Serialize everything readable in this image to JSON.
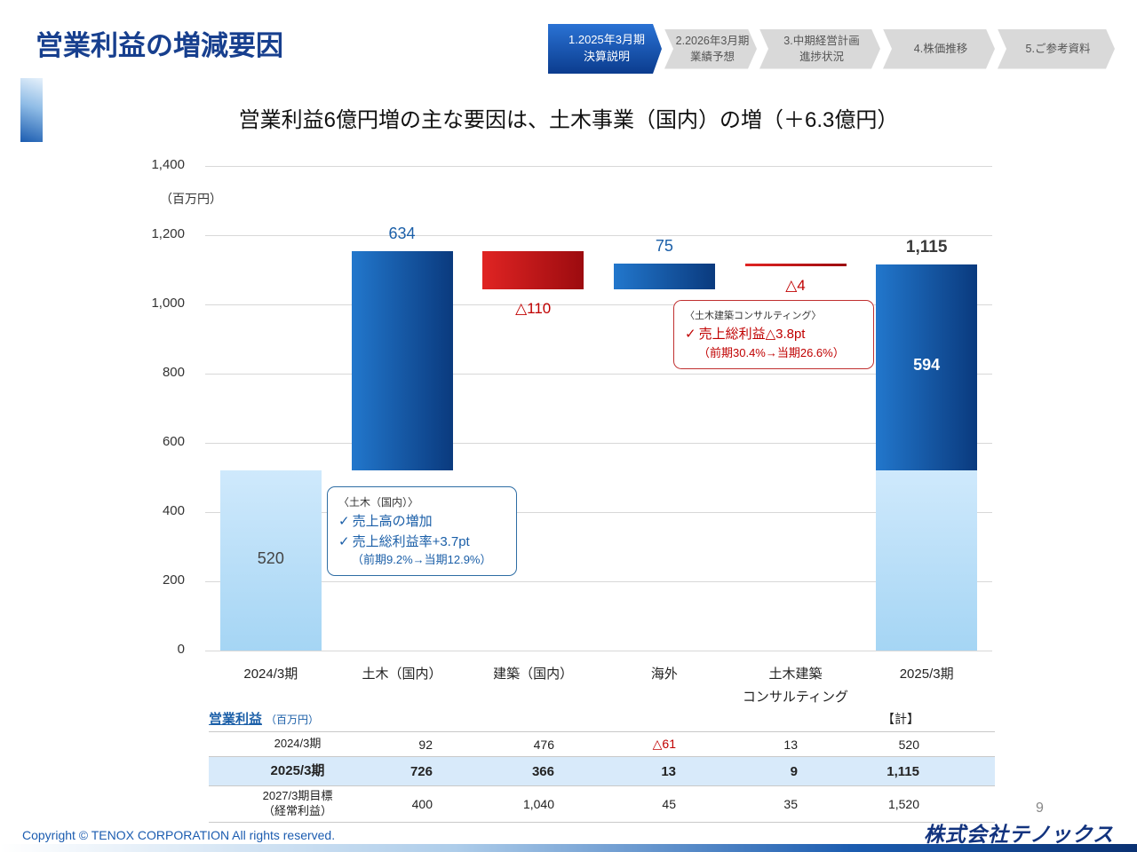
{
  "header": {
    "title": "営業利益の増減要因",
    "tabs": [
      {
        "line1": "1.2025年3月期",
        "line2": "決算説明",
        "active": true
      },
      {
        "line1": "2.2026年3月期",
        "line2": "業績予想",
        "active": false
      },
      {
        "line1": "3.中期経営計画",
        "line2": "進捗状況",
        "active": false
      },
      {
        "line1": "4.株価推移",
        "line2": "",
        "active": false
      },
      {
        "line1": "5.ご参考資料",
        "line2": "",
        "active": false
      }
    ]
  },
  "subtitle": "営業利益6億円増の主な要因は、土木事業（国内）の増（＋6.3億円）",
  "chart_data": {
    "type": "waterfall-bar",
    "unit_label": "（百万円）",
    "ylim": [
      0,
      1400
    ],
    "ytick_interval": 200,
    "categories": [
      "2024/3期",
      "土木（国内）",
      "建築（国内）",
      "海外",
      "土木建築\nコンサルティング",
      "2025/3期"
    ],
    "bars": [
      {
        "name": "2024/3期",
        "start": 0,
        "end": 520,
        "style": "lightblue",
        "value_label": "520",
        "label_position": "inside",
        "label_color": "dark"
      },
      {
        "name": "土木（国内）",
        "start": 520,
        "end": 1154,
        "style": "blue",
        "value_label": "634",
        "label_position": "above",
        "label_color": "blue"
      },
      {
        "name": "建築（国内）",
        "start": 1154,
        "end": 1044,
        "style": "red",
        "value_label": "△110",
        "label_position": "below",
        "label_color": "red"
      },
      {
        "name": "海外",
        "start": 1044,
        "end": 1119,
        "style": "blue",
        "value_label": "75",
        "label_position": "above",
        "label_color": "blue"
      },
      {
        "name": "土木建築コンサルティング",
        "start": 1119,
        "end": 1115,
        "style": "red",
        "value_label": "△4",
        "label_position": "below",
        "label_color": "red"
      },
      {
        "name": "2025/3期",
        "start": 0,
        "end": 1115,
        "style": "stacked",
        "value_label": "1,115",
        "label_position": "above",
        "label_color": "dark-bold",
        "segments": [
          {
            "value": 520,
            "style": "lightblue"
          },
          {
            "value": 595,
            "style": "blue",
            "inner_label": "594"
          }
        ]
      }
    ],
    "colors": {
      "lightblue_top": "#cfe9fc",
      "lightblue_bottom": "#a5d5f4",
      "blue_left": "#2277cc",
      "blue_right": "#0a3a7e",
      "red_left": "#e02423",
      "red_right": "#9c0b0f",
      "label_blue": "#1b5fa8",
      "label_red": "#c00000"
    }
  },
  "annotation_civil": {
    "heading": "〈土木（国内）〉",
    "line1": "売上高の増加",
    "line2": "売上総利益率+3.7pt",
    "line3": "（前期9.2%→当期12.9%）"
  },
  "annotation_consult": {
    "heading": "〈土木建築コンサルティング〉",
    "line1": "売上総利益△3.8pt",
    "line2": "（前期30.4%→当期26.6%）"
  },
  "table": {
    "title": "営業利益",
    "title_unit": "（百万円）",
    "total_header": "【計】",
    "rows": [
      {
        "label": "2024/3期",
        "values": [
          "92",
          "476",
          "△61",
          "13",
          "520"
        ],
        "red_indices": [
          2
        ],
        "bold": false,
        "highlight": false
      },
      {
        "label": "2025/3期",
        "values": [
          "726",
          "366",
          "13",
          "9",
          "1,115"
        ],
        "red_indices": [],
        "bold": true,
        "highlight": true
      },
      {
        "label": "2027/3期目標\n（経常利益）",
        "values": [
          "400",
          "1,040",
          "45",
          "35",
          "1,520"
        ],
        "red_indices": [],
        "bold": false,
        "highlight": false
      }
    ]
  },
  "page_number": "9",
  "footer": {
    "copyright": "Copyright © TENOX CORPORATION All rights reserved.",
    "logo": "株式会社テノックス"
  }
}
